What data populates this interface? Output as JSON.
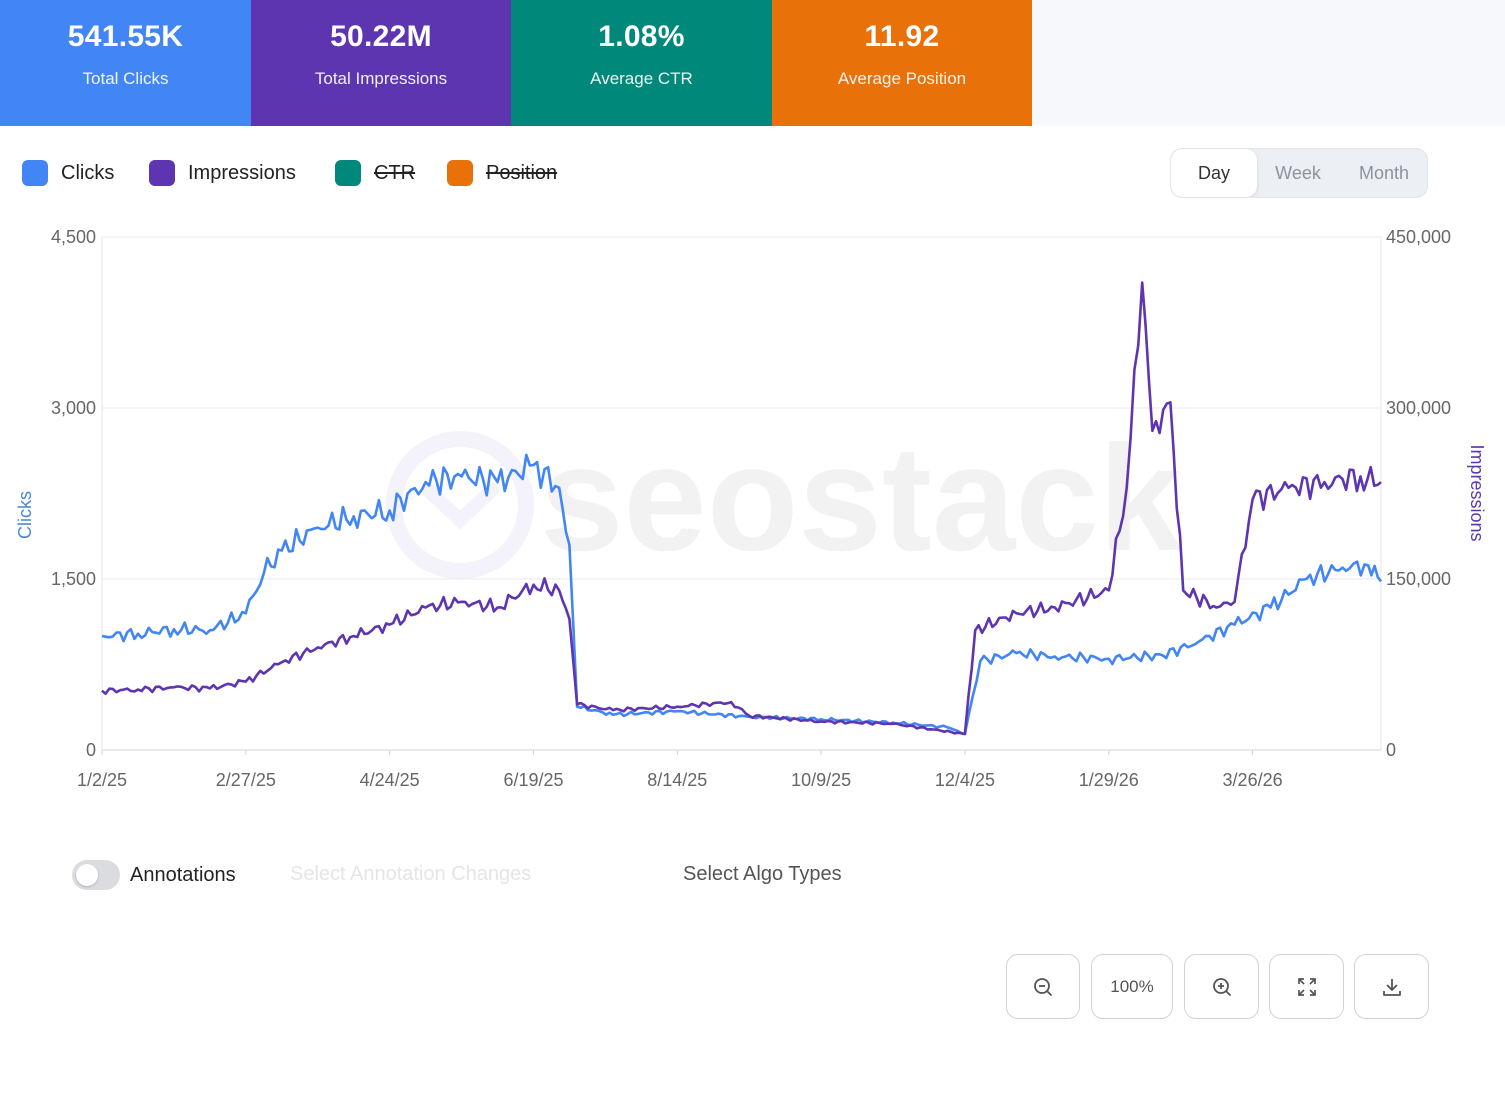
{
  "kpis": [
    {
      "value": "541.55K",
      "label": "Total Clicks",
      "color": "#4285f4"
    },
    {
      "value": "50.22M",
      "label": "Total Impressions",
      "color": "#5e35b1"
    },
    {
      "value": "1.08%",
      "label": "Average CTR",
      "color": "#00897b"
    },
    {
      "value": "11.92",
      "label": "Average Position",
      "color": "#e8710a"
    }
  ],
  "legend": [
    {
      "label": "Clicks",
      "color": "#4285f4",
      "enabled": true
    },
    {
      "label": "Impressions",
      "color": "#5e35b1",
      "enabled": true
    },
    {
      "label": "CTR",
      "color": "#00897b",
      "enabled": false
    },
    {
      "label": "Position",
      "color": "#e8710a",
      "enabled": false
    }
  ],
  "period": {
    "options": [
      "Day",
      "Week",
      "Month"
    ],
    "selected": "Day"
  },
  "watermark": "seostack",
  "chart_data": {
    "type": "line",
    "x_ticks": [
      "1/2/25",
      "2/27/25",
      "4/24/25",
      "6/19/25",
      "8/14/25",
      "10/9/25",
      "12/4/25",
      "1/29/26",
      "3/26/26"
    ],
    "x_range": [
      "2025-01-02",
      "2026-05-15"
    ],
    "y_left": {
      "label": "Clicks",
      "ticks": [
        "0",
        "1,500",
        "3,000",
        "4,500"
      ],
      "range": [
        0,
        4500
      ]
    },
    "y_right": {
      "label": "Impressions",
      "ticks": [
        "0",
        "150,000",
        "300,000",
        "450,000"
      ],
      "range": [
        0,
        450000
      ]
    },
    "grid": true,
    "series": [
      {
        "name": "Clicks",
        "axis": "left",
        "color": "#4285f4",
        "points": [
          [
            "2025-01-02",
            1000
          ],
          [
            "2025-01-16",
            1020
          ],
          [
            "2025-01-30",
            1060
          ],
          [
            "2025-02-13",
            1050
          ],
          [
            "2025-02-27",
            1200
          ],
          [
            "2025-03-06",
            1550
          ],
          [
            "2025-03-13",
            1750
          ],
          [
            "2025-03-27",
            1950
          ],
          [
            "2025-04-10",
            2050
          ],
          [
            "2025-04-24",
            2100
          ],
          [
            "2025-05-08",
            2350
          ],
          [
            "2025-05-22",
            2400
          ],
          [
            "2025-06-05",
            2350
          ],
          [
            "2025-06-19",
            2500
          ],
          [
            "2025-06-29",
            2300
          ],
          [
            "2025-07-03",
            1800
          ],
          [
            "2025-07-06",
            380
          ],
          [
            "2025-07-20",
            310
          ],
          [
            "2025-08-14",
            340
          ],
          [
            "2025-09-11",
            290
          ],
          [
            "2025-10-09",
            270
          ],
          [
            "2025-11-06",
            240
          ],
          [
            "2025-11-27",
            200
          ],
          [
            "2025-12-04",
            140
          ],
          [
            "2025-12-10",
            780
          ],
          [
            "2025-12-24",
            850
          ],
          [
            "2026-01-08",
            820
          ],
          [
            "2026-01-29",
            800
          ],
          [
            "2026-02-19",
            830
          ],
          [
            "2026-03-05",
            950
          ],
          [
            "2026-03-19",
            1100
          ],
          [
            "2026-04-02",
            1250
          ],
          [
            "2026-04-16",
            1500
          ],
          [
            "2026-04-30",
            1600
          ],
          [
            "2026-05-10",
            1620
          ],
          [
            "2026-05-15",
            1480
          ]
        ]
      },
      {
        "name": "Impressions",
        "axis": "right",
        "color": "#5e35b1",
        "points": [
          [
            "2025-01-02",
            52000
          ],
          [
            "2025-01-16",
            53000
          ],
          [
            "2025-01-30",
            55000
          ],
          [
            "2025-02-13",
            54000
          ],
          [
            "2025-02-27",
            60000
          ],
          [
            "2025-03-13",
            77000
          ],
          [
            "2025-03-27",
            90000
          ],
          [
            "2025-04-10",
            100000
          ],
          [
            "2025-04-24",
            110000
          ],
          [
            "2025-05-08",
            125000
          ],
          [
            "2025-05-22",
            130000
          ],
          [
            "2025-06-05",
            125000
          ],
          [
            "2025-06-19",
            145000
          ],
          [
            "2025-06-29",
            140000
          ],
          [
            "2025-07-03",
            115000
          ],
          [
            "2025-07-06",
            40000
          ],
          [
            "2025-07-20",
            35000
          ],
          [
            "2025-08-14",
            38000
          ],
          [
            "2025-09-04",
            42000
          ],
          [
            "2025-09-11",
            30000
          ],
          [
            "2025-10-09",
            25000
          ],
          [
            "2025-11-06",
            23000
          ],
          [
            "2025-12-04",
            14000
          ],
          [
            "2025-12-08",
            105000
          ],
          [
            "2025-12-24",
            120000
          ],
          [
            "2026-01-08",
            125000
          ],
          [
            "2026-01-29",
            140000
          ],
          [
            "2026-02-05",
            230000
          ],
          [
            "2026-02-11",
            410000
          ],
          [
            "2026-02-15",
            280000
          ],
          [
            "2026-02-22",
            305000
          ],
          [
            "2026-02-27",
            140000
          ],
          [
            "2026-03-12",
            125000
          ],
          [
            "2026-03-19",
            130000
          ],
          [
            "2026-03-26",
            220000
          ],
          [
            "2026-04-09",
            230000
          ],
          [
            "2026-04-23",
            235000
          ],
          [
            "2026-05-07",
            240000
          ],
          [
            "2026-05-15",
            235000
          ]
        ]
      }
    ]
  },
  "annotations": {
    "label": "Annotations",
    "enabled": false,
    "select_placeholder": "Select Annotation Changes",
    "algo_placeholder": "Select Algo Types"
  },
  "zoom": {
    "level": "100%"
  }
}
